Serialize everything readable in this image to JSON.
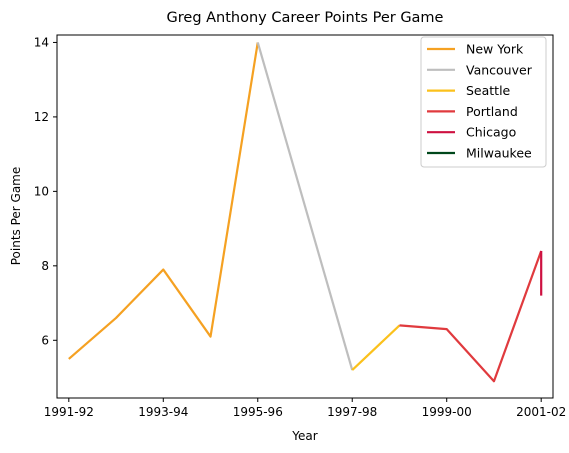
{
  "chart_data": {
    "type": "line",
    "title": "Greg Anthony Career Points Per Game",
    "xlabel": "Year",
    "ylabel": "Points Per Game",
    "xlim": [
      -0.25,
      10.25
    ],
    "ylim": [
      4.45,
      14.2
    ],
    "x_ticks": [
      {
        "pos": 0,
        "label": "1991-92"
      },
      {
        "pos": 2,
        "label": "1993-94"
      },
      {
        "pos": 4,
        "label": "1995-96"
      },
      {
        "pos": 6,
        "label": "1997-98"
      },
      {
        "pos": 8,
        "label": "1999-00"
      },
      {
        "pos": 10,
        "label": "2001-02"
      }
    ],
    "y_ticks": [
      6,
      8,
      10,
      12,
      14
    ],
    "legend_position": "top-right",
    "series": [
      {
        "name": "New York",
        "color": "#f5a122",
        "points": [
          [
            0,
            5.5
          ],
          [
            1,
            6.6
          ],
          [
            2,
            7.9
          ],
          [
            3,
            6.1
          ],
          [
            4,
            14.0
          ]
        ]
      },
      {
        "name": "Vancouver",
        "color": "#bebebe",
        "points": [
          [
            4,
            14.0
          ],
          [
            6,
            5.2
          ]
        ]
      },
      {
        "name": "Seattle",
        "color": "#fbc11c",
        "points": [
          [
            6,
            5.2
          ],
          [
            7,
            6.4
          ]
        ]
      },
      {
        "name": "Portland",
        "color": "#e03a3e",
        "points": [
          [
            7,
            6.4
          ],
          [
            8,
            6.3
          ],
          [
            9,
            4.9
          ],
          [
            10,
            8.4
          ]
        ]
      },
      {
        "name": "Chicago",
        "color": "#ce1141",
        "points": [
          [
            10,
            8.4
          ],
          [
            10,
            7.2
          ]
        ]
      },
      {
        "name": "Milwaukee",
        "color": "#00471b",
        "points": []
      }
    ]
  }
}
